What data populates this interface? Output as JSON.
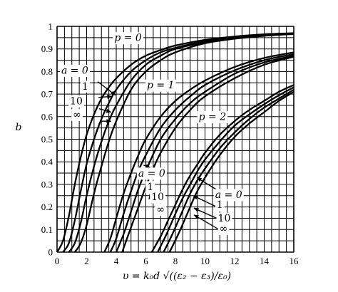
{
  "chart_data": {
    "type": "line",
    "xlabel": "υ = k₀d √((ε₂ − ε₃)/ε₀)",
    "ylabel": "b",
    "xlim": [
      0,
      16
    ],
    "ylim": [
      0,
      1
    ],
    "grid": true,
    "x_ticks": [
      "0",
      "2",
      "4",
      "6",
      "8",
      "10",
      "12",
      "14",
      "16"
    ],
    "y_ticks": [
      "0",
      "0.1",
      "0.2",
      "0.3",
      "0.4",
      "0.5",
      "0.6",
      "0.7",
      "0.8",
      "0.9",
      "1"
    ],
    "groups": [
      {
        "label": "p = 0",
        "series": [
          {
            "name": "a = 0",
            "x": [
              0.0,
              0.4,
              0.8,
              1.2,
              1.6,
              2.0,
              2.5,
              3.0,
              3.5,
              4.0,
              5.0,
              6.0,
              7.0,
              8.0,
              10.0,
              12.0,
              14.0,
              16.0
            ],
            "y": [
              0.0,
              0.05,
              0.16,
              0.3,
              0.42,
              0.52,
              0.61,
              0.68,
              0.73,
              0.77,
              0.83,
              0.87,
              0.895,
              0.915,
              0.94,
              0.955,
              0.965,
              0.97
            ]
          },
          {
            "name": "1",
            "x": [
              0.4,
              0.8,
              1.2,
              1.6,
              2.0,
              2.5,
              3.0,
              3.5,
              4.0,
              5.0,
              6.0,
              7.0,
              8.0,
              10.0,
              12.0,
              14.0,
              16.0
            ],
            "y": [
              0.0,
              0.04,
              0.14,
              0.27,
              0.39,
              0.5,
              0.59,
              0.66,
              0.72,
              0.8,
              0.85,
              0.885,
              0.905,
              0.935,
              0.952,
              0.963,
              0.969
            ]
          },
          {
            "name": "10",
            "x": [
              0.8,
              1.2,
              1.6,
              2.0,
              2.5,
              3.0,
              3.5,
              4.0,
              5.0,
              6.0,
              7.0,
              8.0,
              10.0,
              12.0,
              14.0,
              16.0
            ],
            "y": [
              0.0,
              0.04,
              0.13,
              0.25,
              0.38,
              0.49,
              0.58,
              0.65,
              0.76,
              0.83,
              0.87,
              0.9,
              0.93,
              0.95,
              0.961,
              0.968
            ]
          },
          {
            "name": "∞",
            "x": [
              1.2,
              1.6,
              2.0,
              2.5,
              3.0,
              3.5,
              4.0,
              5.0,
              6.0,
              7.0,
              8.0,
              10.0,
              12.0,
              14.0,
              16.0
            ],
            "y": [
              0.0,
              0.04,
              0.12,
              0.26,
              0.38,
              0.49,
              0.58,
              0.72,
              0.8,
              0.85,
              0.885,
              0.925,
              0.945,
              0.958,
              0.966
            ]
          }
        ]
      },
      {
        "label": "p = 1",
        "series": [
          {
            "name": "a = 0",
            "x": [
              3.2,
              3.6,
              4.0,
              4.5,
              5.0,
              5.5,
              6.0,
              7.0,
              8.0,
              9.0,
              10.0,
              12.0,
              14.0,
              16.0
            ],
            "y": [
              0.0,
              0.06,
              0.15,
              0.26,
              0.35,
              0.43,
              0.5,
              0.6,
              0.67,
              0.72,
              0.76,
              0.82,
              0.86,
              0.885
            ]
          },
          {
            "name": "1",
            "x": [
              3.6,
              4.0,
              4.5,
              5.0,
              5.5,
              6.0,
              7.0,
              8.0,
              9.0,
              10.0,
              12.0,
              14.0,
              16.0
            ],
            "y": [
              0.0,
              0.06,
              0.17,
              0.27,
              0.36,
              0.43,
              0.55,
              0.63,
              0.69,
              0.74,
              0.805,
              0.85,
              0.877
            ]
          },
          {
            "name": "10",
            "x": [
              4.0,
              4.5,
              5.0,
              5.5,
              6.0,
              7.0,
              8.0,
              9.0,
              10.0,
              12.0,
              14.0,
              16.0
            ],
            "y": [
              0.0,
              0.08,
              0.18,
              0.28,
              0.36,
              0.5,
              0.59,
              0.66,
              0.71,
              0.79,
              0.84,
              0.87
            ]
          },
          {
            "name": "∞",
            "x": [
              4.4,
              5.0,
              5.5,
              6.0,
              6.5,
              7.0,
              8.0,
              9.0,
              10.0,
              12.0,
              14.0,
              16.0
            ],
            "y": [
              0.0,
              0.11,
              0.2,
              0.29,
              0.37,
              0.44,
              0.55,
              0.63,
              0.69,
              0.77,
              0.83,
              0.865
            ]
          }
        ]
      },
      {
        "label": "p = 2",
        "series": [
          {
            "name": "a = 0",
            "x": [
              6.4,
              7.0,
              7.5,
              8.0,
              8.5,
              9.0,
              9.5,
              10.0,
              11.0,
              12.0,
              13.0,
              14.0,
              15.0,
              16.0
            ],
            "y": [
              0.0,
              0.07,
              0.14,
              0.21,
              0.28,
              0.34,
              0.39,
              0.44,
              0.52,
              0.58,
              0.63,
              0.67,
              0.71,
              0.74
            ]
          },
          {
            "name": "1",
            "x": [
              6.8,
              7.4,
              8.0,
              8.5,
              9.0,
              9.5,
              10.0,
              11.0,
              12.0,
              13.0,
              14.0,
              15.0,
              16.0
            ],
            "y": [
              0.0,
              0.08,
              0.17,
              0.24,
              0.3,
              0.36,
              0.41,
              0.49,
              0.56,
              0.61,
              0.655,
              0.695,
              0.73
            ]
          },
          {
            "name": "10",
            "x": [
              7.2,
              7.8,
              8.4,
              9.0,
              9.5,
              10.0,
              11.0,
              12.0,
              13.0,
              14.0,
              15.0,
              16.0
            ],
            "y": [
              0.0,
              0.08,
              0.17,
              0.26,
              0.32,
              0.37,
              0.46,
              0.53,
              0.59,
              0.64,
              0.68,
              0.72
            ]
          },
          {
            "name": "∞",
            "x": [
              7.6,
              8.2,
              8.8,
              9.4,
              10.0,
              11.0,
              12.0,
              13.0,
              14.0,
              15.0,
              16.0
            ],
            "y": [
              0.0,
              0.08,
              0.17,
              0.26,
              0.33,
              0.43,
              0.51,
              0.57,
              0.62,
              0.67,
              0.71
            ]
          }
        ]
      }
    ],
    "annotations": [
      {
        "text": "p = 0",
        "x": 4.8,
        "y": 0.935
      },
      {
        "text": "p = 1",
        "x": 7.0,
        "y": 0.725
      },
      {
        "text": "p = 2",
        "x": 10.5,
        "y": 0.585
      },
      {
        "text": "a = 0",
        "x": 1.2,
        "y": 0.79
      },
      {
        "text": "1",
        "x": 1.9,
        "y": 0.72
      },
      {
        "text": "10",
        "x": 1.3,
        "y": 0.655
      },
      {
        "text": "∞",
        "x": 1.35,
        "y": 0.595
      },
      {
        "text": "a = 0",
        "x": 6.4,
        "y": 0.335
      },
      {
        "text": "1",
        "x": 6.3,
        "y": 0.275
      },
      {
        "text": "10",
        "x": 6.8,
        "y": 0.23
      },
      {
        "text": "∞",
        "x": 7.0,
        "y": 0.175
      },
      {
        "text": "a = 0",
        "x": 11.6,
        "y": 0.24
      },
      {
        "text": "1",
        "x": 11.0,
        "y": 0.195
      },
      {
        "text": "10",
        "x": 11.3,
        "y": 0.135
      },
      {
        "text": "∞",
        "x": 11.25,
        "y": 0.09
      }
    ],
    "arrows": [
      {
        "from": [
          2.75,
          0.755
        ],
        "to": [
          3.95,
          0.695
        ]
      },
      {
        "from": [
          2.8,
          0.685
        ],
        "to": [
          3.7,
          0.69
        ]
      },
      {
        "from": [
          2.85,
          0.635
        ],
        "to": [
          3.65,
          0.62
        ]
      },
      {
        "from": [
          2.95,
          0.58
        ],
        "to": [
          3.65,
          0.58
        ]
      },
      {
        "from": [
          5.85,
          0.385
        ],
        "to": [
          6.3,
          0.375
        ]
      },
      {
        "from": [
          6.2,
          0.32
        ],
        "to": [
          6.25,
          0.36
        ]
      },
      {
        "from": [
          6.45,
          0.265
        ],
        "to": [
          6.2,
          0.3
        ]
      },
      {
        "from": [
          6.4,
          0.215
        ],
        "to": [
          6.25,
          0.255
        ]
      },
      {
        "from": [
          11.45,
          0.25
        ],
        "to": [
          9.45,
          0.33
        ]
      },
      {
        "from": [
          10.8,
          0.2
        ],
        "to": [
          9.2,
          0.25
        ]
      },
      {
        "from": [
          10.95,
          0.145
        ],
        "to": [
          9.25,
          0.195
        ]
      },
      {
        "from": [
          10.95,
          0.1
        ],
        "to": [
          9.25,
          0.165
        ]
      }
    ]
  }
}
